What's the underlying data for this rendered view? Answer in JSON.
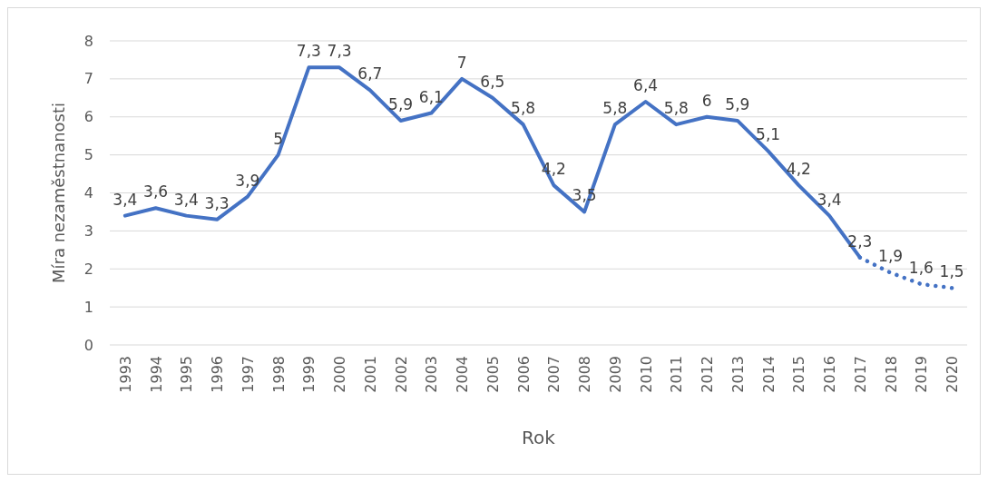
{
  "chart_data": {
    "type": "line",
    "xlabel": "Rok",
    "ylabel": "Míra nezaměstnanosti",
    "categories": [
      "1993",
      "1994",
      "1995",
      "1996",
      "1997",
      "1998",
      "1999",
      "2000",
      "2001",
      "2002",
      "2003",
      "2004",
      "2005",
      "2006",
      "2007",
      "2008",
      "2009",
      "2010",
      "2011",
      "2012",
      "2013",
      "2014",
      "2015",
      "2016",
      "2017",
      "2018",
      "2019",
      "2020"
    ],
    "series": [
      {
        "color": "#4472c4",
        "line_style": "solid",
        "values": [
          3.4,
          3.6,
          3.4,
          3.3,
          3.9,
          5,
          7.3,
          7.3,
          6.7,
          5.9,
          6.1,
          7,
          6.5,
          5.8,
          4.2,
          3.5,
          5.8,
          6.4,
          5.8,
          6,
          5.9,
          5.1,
          4.2,
          3.4,
          2.3,
          null,
          null,
          null
        ],
        "value_labels": [
          "3,4",
          "3,6",
          "3,4",
          "3,3",
          "3,9",
          "5",
          "7,3",
          "7,3",
          "6,7",
          "5,9",
          "6,1",
          "7",
          "6,5",
          "5,8",
          "4,2",
          "3,5",
          "5,8",
          "6,4",
          "5,8",
          "6",
          "5,9",
          "5,1",
          "4,2",
          "3,4",
          "2,3",
          null,
          null,
          null
        ]
      },
      {
        "color": "#4472c4",
        "line_style": "dotted",
        "values": [
          null,
          null,
          null,
          null,
          null,
          null,
          null,
          null,
          null,
          null,
          null,
          null,
          null,
          null,
          null,
          null,
          null,
          null,
          null,
          null,
          null,
          null,
          null,
          null,
          2.3,
          1.9,
          1.6,
          1.5
        ],
        "value_labels": [
          null,
          null,
          null,
          null,
          null,
          null,
          null,
          null,
          null,
          null,
          null,
          null,
          null,
          null,
          null,
          null,
          null,
          null,
          null,
          null,
          null,
          null,
          null,
          null,
          null,
          "1,9",
          "1,6",
          "1,5"
        ]
      }
    ],
    "ylim": [
      0,
      8
    ],
    "yticks": [
      0,
      1,
      2,
      3,
      4,
      5,
      6,
      7,
      8
    ],
    "grid": "y",
    "marker": "none"
  }
}
